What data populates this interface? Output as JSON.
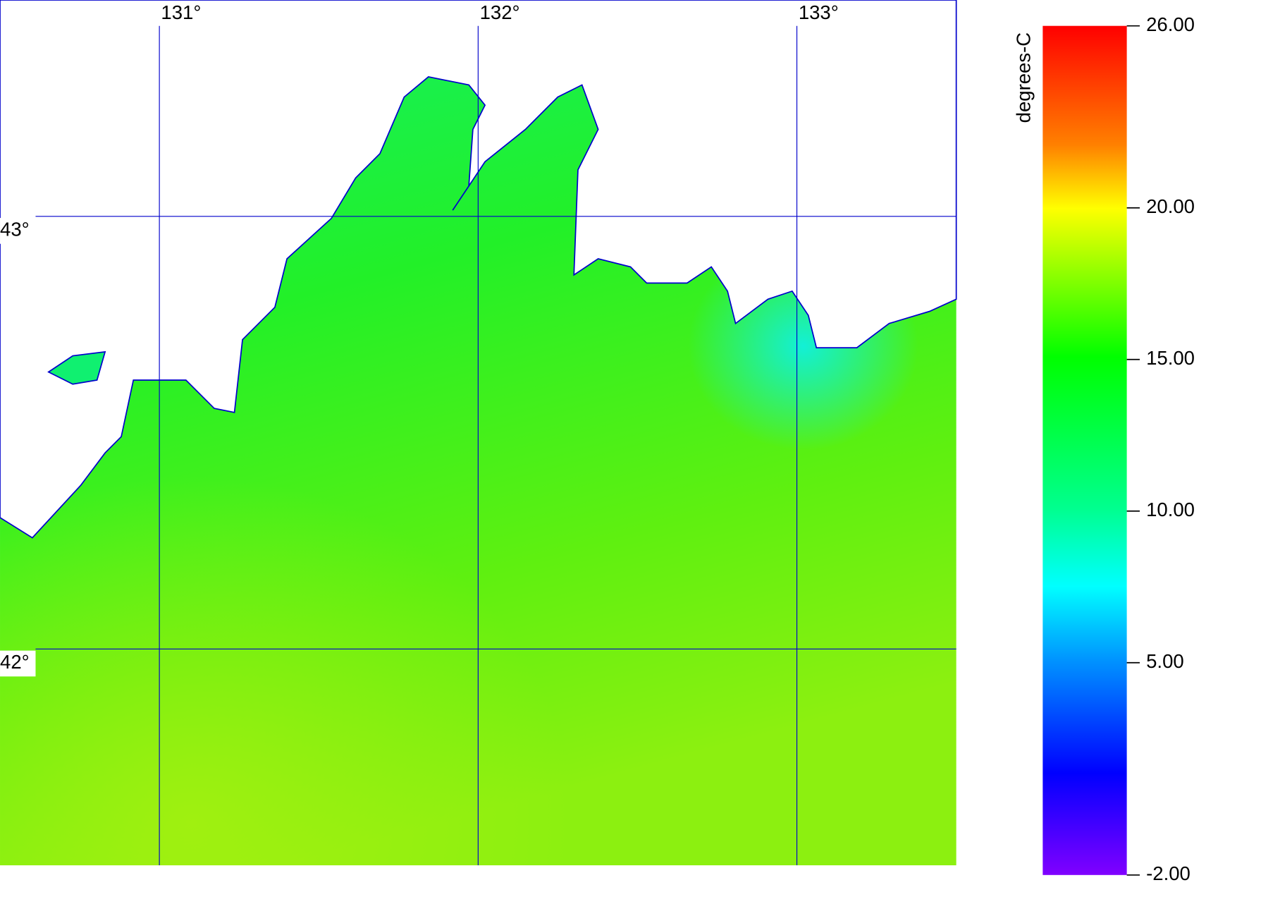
{
  "map": {
    "xlim": [
      130.5,
      133.5
    ],
    "ylim": [
      41.5,
      43.5
    ],
    "xticks": [
      {
        "value": 131,
        "label": "131°"
      },
      {
        "value": 132,
        "label": "132°"
      },
      {
        "value": 133,
        "label": "133°"
      }
    ],
    "yticks": [
      {
        "value": 43,
        "label": "43°"
      },
      {
        "value": 42,
        "label": "42°"
      }
    ]
  },
  "colorbar": {
    "label": "degrees-C",
    "lim": [
      -2,
      26
    ],
    "ticks": [
      {
        "value": 26,
        "label": "26.00"
      },
      {
        "value": 20,
        "label": "20.00"
      },
      {
        "value": 15,
        "label": "15.00"
      },
      {
        "value": 10,
        "label": "10.00"
      },
      {
        "value": 5,
        "label": "5.00"
      },
      {
        "value": -2,
        "label": "-2.00"
      }
    ]
  }
}
